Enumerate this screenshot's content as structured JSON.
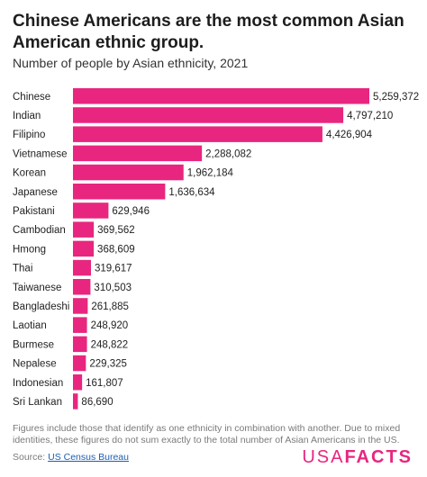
{
  "header": {
    "title": "Chinese Americans are the most common Asian American ethnic group.",
    "subtitle": "Number of people by Asian ethnicity, 2021"
  },
  "footer": {
    "note": "Figures include those that identify as one ethnicity in combination with another. Due to mixed identities, these figures do not sum exactly to the total number of Asian Americans in the US.",
    "source_prefix": "Source:",
    "source_link": "US Census Bureau",
    "logo_usa": "USA",
    "logo_facts": "FACTS"
  },
  "colors": {
    "bar": "#e8267f",
    "brand": "#e8267f"
  },
  "chart_data": {
    "type": "bar",
    "orientation": "horizontal",
    "title": "Chinese Americans are the most common Asian American ethnic group.",
    "subtitle": "Number of people by Asian ethnicity, 2021",
    "categories": [
      "Chinese",
      "Indian",
      "Filipino",
      "Vietnamese",
      "Korean",
      "Japanese",
      "Pakistani",
      "Cambodian",
      "Hmong",
      "Thai",
      "Taiwanese",
      "Bangladeshi",
      "Laotian",
      "Burmese",
      "Nepalese",
      "Indonesian",
      "Sri Lankan"
    ],
    "values": [
      5259372,
      4797210,
      4426904,
      2288082,
      1962184,
      1636634,
      629946,
      369562,
      368609,
      319617,
      310503,
      261885,
      248920,
      248822,
      229325,
      161807,
      86690
    ],
    "value_labels": [
      "5,259,372",
      "4,797,210",
      "4,426,904",
      "2,288,082",
      "1,962,184",
      "1,636,634",
      "629,946",
      "369,562",
      "368,609",
      "319,617",
      "310,503",
      "261,885",
      "248,920",
      "248,822",
      "229,325",
      "161,807",
      "86,690"
    ],
    "xlim": [
      0,
      5259372
    ],
    "grid": false,
    "legend": "none"
  }
}
